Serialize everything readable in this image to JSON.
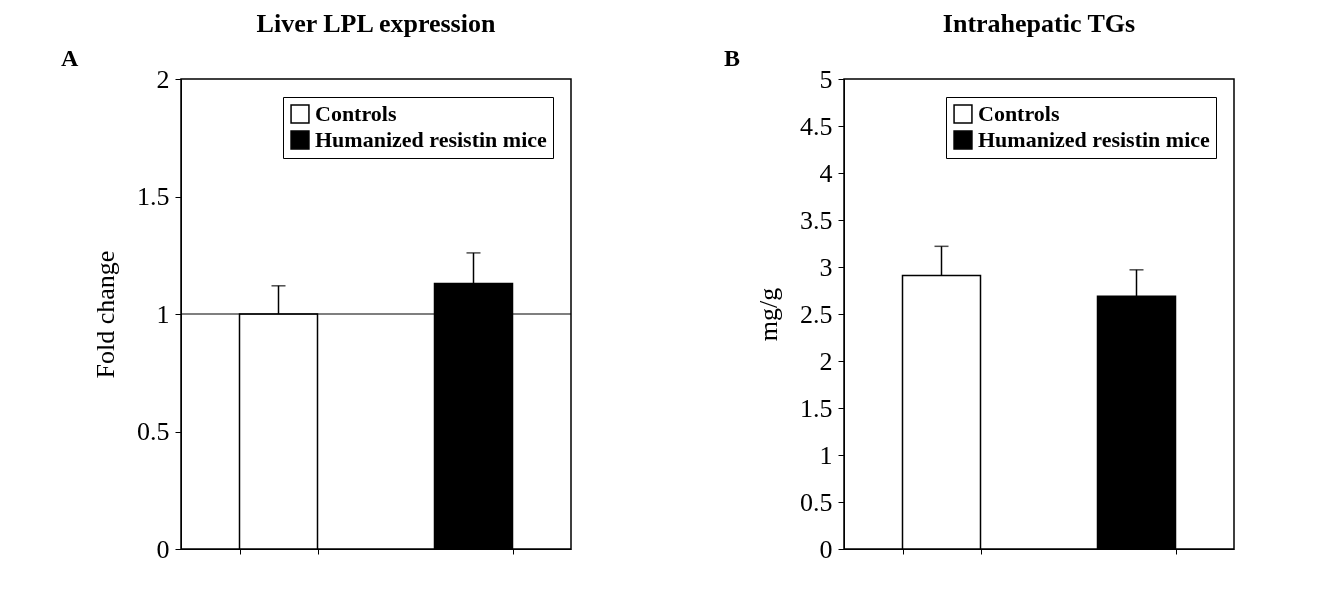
{
  "chart_data": [
    {
      "type": "bar",
      "title": "Liver LPL expression",
      "ylabel": "Fold change",
      "annotations": [
        "A"
      ],
      "categories": [
        null,
        null
      ],
      "series": [
        {
          "name": "Controls",
          "color": "#ffffff",
          "values": [
            1.0,
            null
          ],
          "errors": [
            [
              1.0,
              1.12
            ],
            null
          ]
        },
        {
          "name": "Humanized resistin mice",
          "color": "#000000",
          "values": [
            null,
            1.13
          ],
          "errors": [
            null,
            [
              1.13,
              1.26
            ]
          ]
        }
      ],
      "ylim": [
        0,
        2
      ],
      "yticks": [
        0,
        0.5,
        1,
        1.5,
        2
      ],
      "grid": false,
      "legend": "top right",
      "tick_labels": "y",
      "ref_lines": [
        {
          "axis": "y",
          "value": 1,
          "color": "#000000"
        }
      ]
    },
    {
      "type": "bar",
      "title": "Intrahepatic TGs",
      "ylabel": "mg/g",
      "annotations": [
        "B"
      ],
      "categories": [
        null,
        null
      ],
      "series": [
        {
          "name": "Controls",
          "color": "#ffffff",
          "values": [
            2.91,
            null
          ],
          "errors": [
            [
              2.91,
              3.22
            ],
            null
          ]
        },
        {
          "name": "Humanized resistin mice",
          "color": "#000000",
          "values": [
            null,
            2.69
          ],
          "errors": [
            null,
            [
              2.69,
              2.97
            ]
          ]
        }
      ],
      "ylim": [
        0,
        5
      ],
      "yticks": [
        0,
        0.5,
        1,
        1.5,
        2,
        2.5,
        3,
        3.5,
        4,
        4.5,
        5
      ],
      "grid": false,
      "legend": "top right",
      "tick_labels": "y"
    }
  ]
}
